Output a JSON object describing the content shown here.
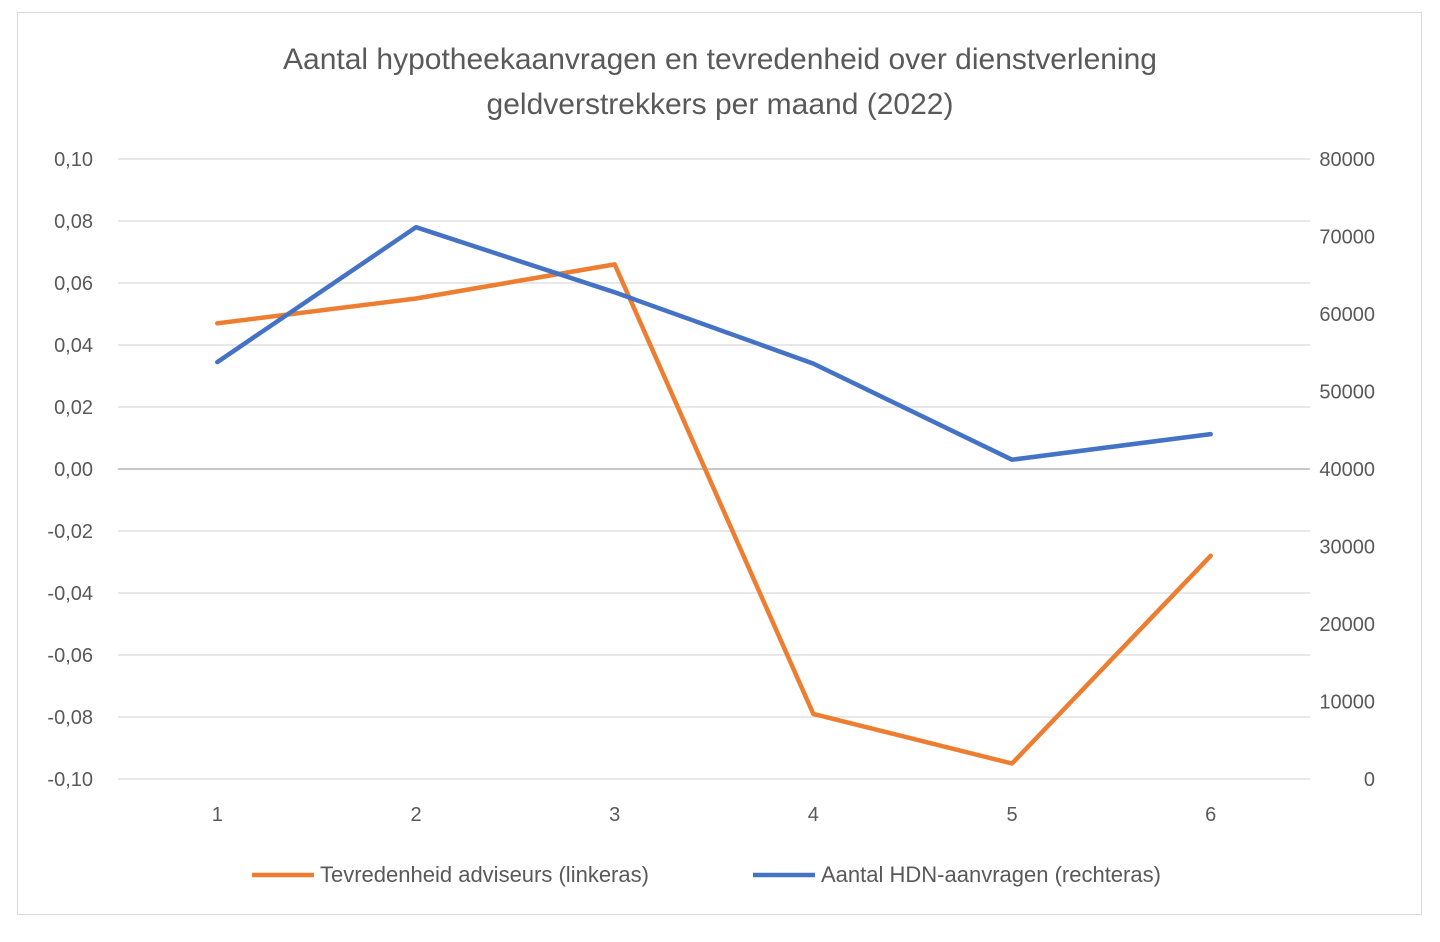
{
  "chart_data": {
    "type": "line",
    "title_lines": [
      "Aantal hypotheekaanvragen en tevredenheid over dienstverlening",
      "geldverstrekkers per maand (2022)"
    ],
    "x": [
      "1",
      "2",
      "3",
      "4",
      "5",
      "6"
    ],
    "left_axis": {
      "range": [
        -0.1,
        0.1
      ],
      "ticks": [
        0.1,
        0.08,
        0.06,
        0.04,
        0.02,
        0.0,
        -0.02,
        -0.04,
        -0.06,
        -0.08,
        -0.1
      ],
      "tick_labels": [
        "0,10",
        "0,08",
        "0,06",
        "0,04",
        "0,02",
        "0,00",
        "-0,02",
        "-0,04",
        "-0,06",
        "-0,08",
        "-0,10"
      ]
    },
    "right_axis": {
      "range": [
        0,
        80000
      ],
      "ticks": [
        80000,
        70000,
        60000,
        50000,
        40000,
        30000,
        20000,
        10000,
        0
      ],
      "tick_labels": [
        "80000",
        "70000",
        "60000",
        "50000",
        "40000",
        "30000",
        "20000",
        "10000",
        "0"
      ]
    },
    "series": [
      {
        "name": "Tevredenheid adviseurs (linkeras)",
        "axis": "left",
        "color": "#ED7D31",
        "values": [
          0.047,
          0.055,
          0.066,
          -0.079,
          -0.095,
          -0.028
        ]
      },
      {
        "name": "Aantal HDN-aanvragen (rechteras)",
        "axis": "right",
        "color": "#4472C4",
        "values": [
          53800,
          71200,
          62800,
          53600,
          41200,
          44500
        ]
      }
    ],
    "grid": true,
    "legend_position": "bottom"
  }
}
